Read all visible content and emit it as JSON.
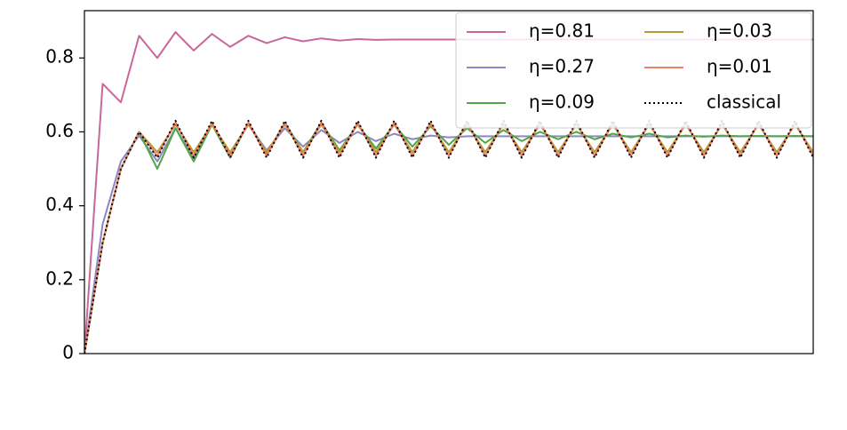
{
  "chart_data": {
    "type": "line",
    "x": [
      0,
      1,
      2,
      3,
      4,
      5,
      6,
      7,
      8,
      9,
      10,
      11,
      12,
      13,
      14,
      15,
      16,
      17,
      18,
      19,
      20,
      21,
      22,
      23,
      24,
      25,
      26,
      27,
      28,
      29,
      30,
      31,
      32,
      33,
      34,
      35,
      36,
      37,
      38,
      39,
      40
    ],
    "xlim": [
      0,
      40
    ],
    "ylim": [
      0,
      0.928
    ],
    "yticks": [
      0,
      0.2,
      0.4,
      0.6,
      0.8
    ],
    "legend": "upper right",
    "series": [
      {
        "name": "η=0.81",
        "color": "#c8689a",
        "style": "solid",
        "values": [
          0.0,
          0.73,
          0.68,
          0.86,
          0.8,
          0.87,
          0.82,
          0.865,
          0.83,
          0.86,
          0.84,
          0.856,
          0.845,
          0.853,
          0.847,
          0.851,
          0.849,
          0.85,
          0.85,
          0.85,
          0.85,
          0.85,
          0.85,
          0.85,
          0.85,
          0.85,
          0.85,
          0.85,
          0.85,
          0.85,
          0.85,
          0.85,
          0.85,
          0.85,
          0.85,
          0.85,
          0.85,
          0.85,
          0.85,
          0.85,
          0.85
        ]
      },
      {
        "name": "η=0.27",
        "color": "#8c87c2",
        "style": "solid",
        "values": [
          0.0,
          0.35,
          0.52,
          0.59,
          0.52,
          0.61,
          0.53,
          0.62,
          0.54,
          0.62,
          0.55,
          0.61,
          0.56,
          0.605,
          0.57,
          0.6,
          0.575,
          0.595,
          0.58,
          0.59,
          0.585,
          0.588,
          0.588,
          0.588,
          0.588,
          0.588,
          0.588,
          0.588,
          0.588,
          0.588,
          0.588,
          0.588,
          0.588,
          0.588,
          0.588,
          0.588,
          0.588,
          0.588,
          0.588,
          0.588,
          0.588
        ]
      },
      {
        "name": "η=0.09",
        "color": "#4ea845",
        "style": "solid",
        "values": [
          0.0,
          0.3,
          0.5,
          0.6,
          0.5,
          0.61,
          0.52,
          0.62,
          0.53,
          0.625,
          0.54,
          0.625,
          0.545,
          0.625,
          0.55,
          0.62,
          0.555,
          0.62,
          0.56,
          0.615,
          0.565,
          0.61,
          0.57,
          0.605,
          0.575,
          0.6,
          0.58,
          0.6,
          0.58,
          0.595,
          0.585,
          0.595,
          0.585,
          0.59,
          0.587,
          0.59,
          0.588,
          0.589,
          0.588,
          0.589,
          0.588
        ]
      },
      {
        "name": "η=0.03",
        "color": "#b89a30",
        "style": "solid",
        "values": [
          0.0,
          0.3,
          0.5,
          0.6,
          0.545,
          0.62,
          0.545,
          0.62,
          0.545,
          0.62,
          0.545,
          0.62,
          0.545,
          0.62,
          0.545,
          0.62,
          0.545,
          0.62,
          0.545,
          0.62,
          0.545,
          0.62,
          0.545,
          0.62,
          0.545,
          0.62,
          0.545,
          0.62,
          0.545,
          0.62,
          0.545,
          0.62,
          0.545,
          0.62,
          0.545,
          0.62,
          0.545,
          0.62,
          0.545,
          0.62,
          0.545
        ]
      },
      {
        "name": "η=0.01",
        "color": "#ec8068",
        "style": "solid",
        "values": [
          0.0,
          0.3,
          0.5,
          0.6,
          0.535,
          0.625,
          0.535,
          0.625,
          0.535,
          0.625,
          0.535,
          0.625,
          0.535,
          0.625,
          0.535,
          0.625,
          0.535,
          0.625,
          0.535,
          0.625,
          0.535,
          0.625,
          0.535,
          0.625,
          0.535,
          0.625,
          0.535,
          0.625,
          0.535,
          0.625,
          0.535,
          0.625,
          0.535,
          0.625,
          0.535,
          0.625,
          0.535,
          0.625,
          0.535,
          0.625,
          0.535
        ]
      },
      {
        "name": "classical",
        "color": "#000000",
        "style": "dotted",
        "values": [
          0.0,
          0.3,
          0.5,
          0.6,
          0.53,
          0.63,
          0.53,
          0.63,
          0.53,
          0.63,
          0.53,
          0.63,
          0.53,
          0.63,
          0.53,
          0.63,
          0.53,
          0.63,
          0.53,
          0.63,
          0.53,
          0.63,
          0.53,
          0.63,
          0.53,
          0.63,
          0.53,
          0.63,
          0.53,
          0.63,
          0.53,
          0.63,
          0.53,
          0.63,
          0.53,
          0.63,
          0.53,
          0.63,
          0.53,
          0.63,
          0.53
        ]
      }
    ]
  }
}
